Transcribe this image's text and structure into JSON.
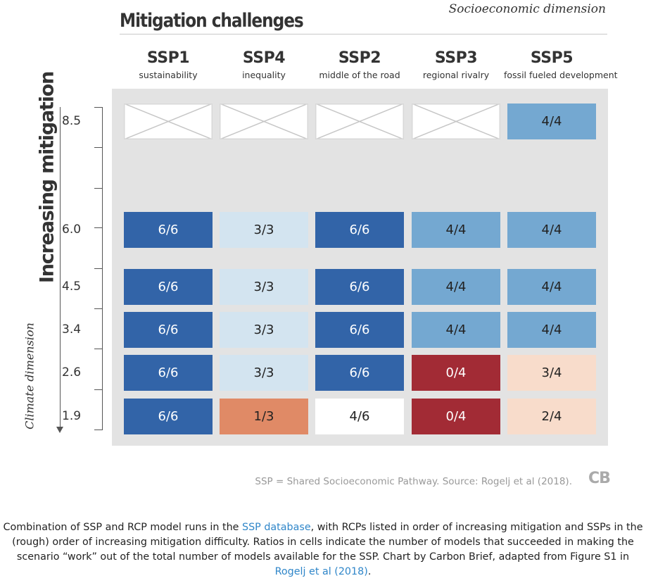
{
  "header": {
    "title": "Mitigation challenges",
    "corner_label": "Socioeconomic dimension"
  },
  "chart_data": {
    "type": "table",
    "columns": [
      {
        "ssp": "SSP1",
        "sub": "sustainability"
      },
      {
        "ssp": "SSP4",
        "sub": "inequality"
      },
      {
        "ssp": "SSP2",
        "sub": "middle of the road"
      },
      {
        "ssp": "SSP3",
        "sub": "regional rivalry"
      },
      {
        "ssp": "SSP5",
        "sub": "fossil fueled development"
      }
    ],
    "rows": [
      {
        "rcp": "8.5",
        "cells": [
          null,
          null,
          null,
          null,
          "4/4"
        ]
      },
      {
        "rcp": "6.0",
        "cells": [
          "6/6",
          "3/3",
          "6/6",
          "4/4",
          "4/4"
        ]
      },
      {
        "rcp": "4.5",
        "cells": [
          "6/6",
          "3/3",
          "6/6",
          "4/4",
          "4/4"
        ]
      },
      {
        "rcp": "3.4",
        "cells": [
          "6/6",
          "3/3",
          "6/6",
          "4/4",
          "4/4"
        ]
      },
      {
        "rcp": "2.6",
        "cells": [
          "6/6",
          "3/3",
          "6/6",
          "0/4",
          "3/4"
        ]
      },
      {
        "rcp": "1.9",
        "cells": [
          "6/6",
          "1/3",
          "4/6",
          "0/4",
          "2/4"
        ]
      }
    ],
    "y_axis_label": "Increasing mitigation",
    "y_axis_sublabel": "Climate dimension",
    "colors": {
      "dark_blue": "#3264a8",
      "mid_blue": "#74a8d1",
      "light_blue": "#d3e4f0",
      "white": "#ffffff",
      "orange": "#e08a66",
      "dark_red": "#a22b35",
      "peach": "#f8dccb",
      "no_data": "#ffffff"
    },
    "cell_colors": [
      [
        null,
        null,
        null,
        null,
        "mid_blue"
      ],
      [
        "dark_blue",
        "light_blue",
        "dark_blue",
        "mid_blue",
        "mid_blue"
      ],
      [
        "dark_blue",
        "light_blue",
        "dark_blue",
        "mid_blue",
        "mid_blue"
      ],
      [
        "dark_blue",
        "light_blue",
        "dark_blue",
        "mid_blue",
        "mid_blue"
      ],
      [
        "dark_blue",
        "light_blue",
        "dark_blue",
        "dark_red",
        "peach"
      ],
      [
        "dark_blue",
        "orange",
        "white",
        "dark_red",
        "peach"
      ]
    ]
  },
  "footer": {
    "source": "SSP = Shared Socioeconomic Pathway. Source: Rogelj et al (2018).",
    "logo_text": "CB"
  },
  "caption": {
    "part1": "Combination of SSP and RCP model runs in the ",
    "link1": "SSP database",
    "part2": ", with RCPs listed in order of increasing mitigation and SSPs in the (rough) order of increasing mitigation difficulty. Ratios in cells indicate the number of models that succeeded in making the scenario “work” out of the total number of models available for the SSP. Chart by Carbon Brief, adapted from Figure S1 in ",
    "link2": "Rogelj et al (2018)",
    "part3": "."
  }
}
